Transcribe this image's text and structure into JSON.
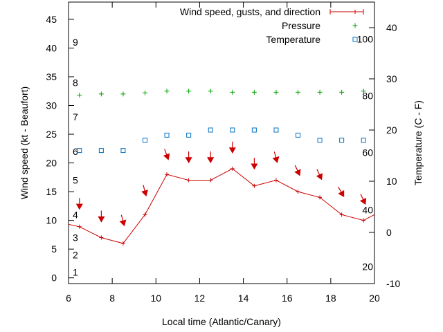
{
  "chart_data": {
    "type": "line",
    "xlabel": "Local time (Atlantic/Canary)",
    "ylabel": "Wind speed (kt - Beaufort)",
    "y2label": "Temperature (C - F)",
    "xlim": [
      6,
      20
    ],
    "ylim": [
      -1,
      48
    ],
    "y2lim": [
      -10,
      45
    ],
    "x_ticks": [
      6,
      8,
      10,
      12,
      14,
      16,
      18,
      20
    ],
    "y_ticks": [
      0,
      5,
      10,
      15,
      20,
      25,
      30,
      35,
      40,
      45
    ],
    "y2_ticks": [
      -10,
      0,
      10,
      20,
      30,
      40
    ],
    "beaufort_labels": [
      {
        "label": "1",
        "kt": 1
      },
      {
        "label": "2",
        "kt": 4
      },
      {
        "label": "3",
        "kt": 7
      },
      {
        "label": "4",
        "kt": 11
      },
      {
        "label": "5",
        "kt": 17
      },
      {
        "label": "6",
        "kt": 22
      },
      {
        "label": "7",
        "kt": 28
      },
      {
        "label": "8",
        "kt": 34
      },
      {
        "label": "9",
        "kt": 41
      }
    ],
    "fahrenheit_labels": [
      {
        "label": "20",
        "celsius": -6.7
      },
      {
        "label": "40",
        "celsius": 4.4
      },
      {
        "label": "60",
        "celsius": 15.6
      },
      {
        "label": "80",
        "celsius": 26.7
      },
      {
        "label": "100",
        "celsius": 37.8
      }
    ],
    "legend": [
      {
        "name": "Wind speed, gusts, and direction",
        "marker": "line-plus",
        "color": "#cc0000"
      },
      {
        "name": "Pressure",
        "marker": "plus",
        "color": "#00a000"
      },
      {
        "name": "Temperature",
        "marker": "square",
        "color": "#0070c0"
      }
    ],
    "series": [
      {
        "name": "Wind speed",
        "axis": "y1",
        "x": [
          6,
          6.5,
          7.5,
          8.5,
          9.5,
          10.5,
          11.5,
          12.5,
          13.5,
          14.5,
          15.5,
          16.5,
          17.5,
          18.5,
          19.5,
          20
        ],
        "values": [
          9.3,
          8.9,
          7,
          6,
          11,
          18,
          17,
          17,
          19,
          16,
          17,
          15,
          14,
          11,
          10,
          11
        ]
      },
      {
        "name": "Wind direction arrows",
        "axis": "y1",
        "x": [
          6.5,
          7.5,
          8.5,
          9.5,
          10.5,
          11.5,
          12.5,
          13.5,
          14.5,
          15.5,
          16.5,
          17.5,
          18.5,
          19.5
        ],
        "values": [
          12.7,
          10.5,
          9.8,
          15,
          21.3,
          20.8,
          20.8,
          22.5,
          19.7,
          20.8,
          18.5,
          17.8,
          14.8,
          13.5
        ],
        "angles_deg": [
          0,
          0,
          -15,
          -15,
          -20,
          0,
          0,
          0,
          0,
          -15,
          -25,
          -25,
          -30,
          -25
        ]
      },
      {
        "name": "Pressure",
        "axis": "y1",
        "x": [
          6.5,
          7.5,
          8.5,
          9.5,
          10.5,
          11.5,
          12.5,
          13.5,
          14.5,
          15.5,
          16.5,
          17.5,
          18.5,
          19.5
        ],
        "values": [
          31.8,
          32,
          32,
          32.2,
          32.5,
          32.5,
          32.5,
          32.3,
          32.3,
          32.3,
          32.3,
          32.3,
          32.3,
          32.5
        ]
      },
      {
        "name": "Temperature",
        "axis": "y2",
        "x": [
          6.5,
          7.5,
          8.5,
          9.5,
          10.5,
          11.5,
          12.5,
          13.5,
          14.5,
          15.5,
          16.5,
          17.5,
          18.5,
          19.5
        ],
        "values": [
          16,
          16,
          16,
          18,
          19,
          19,
          20,
          20,
          20,
          20,
          19,
          18,
          18,
          18
        ]
      }
    ]
  }
}
